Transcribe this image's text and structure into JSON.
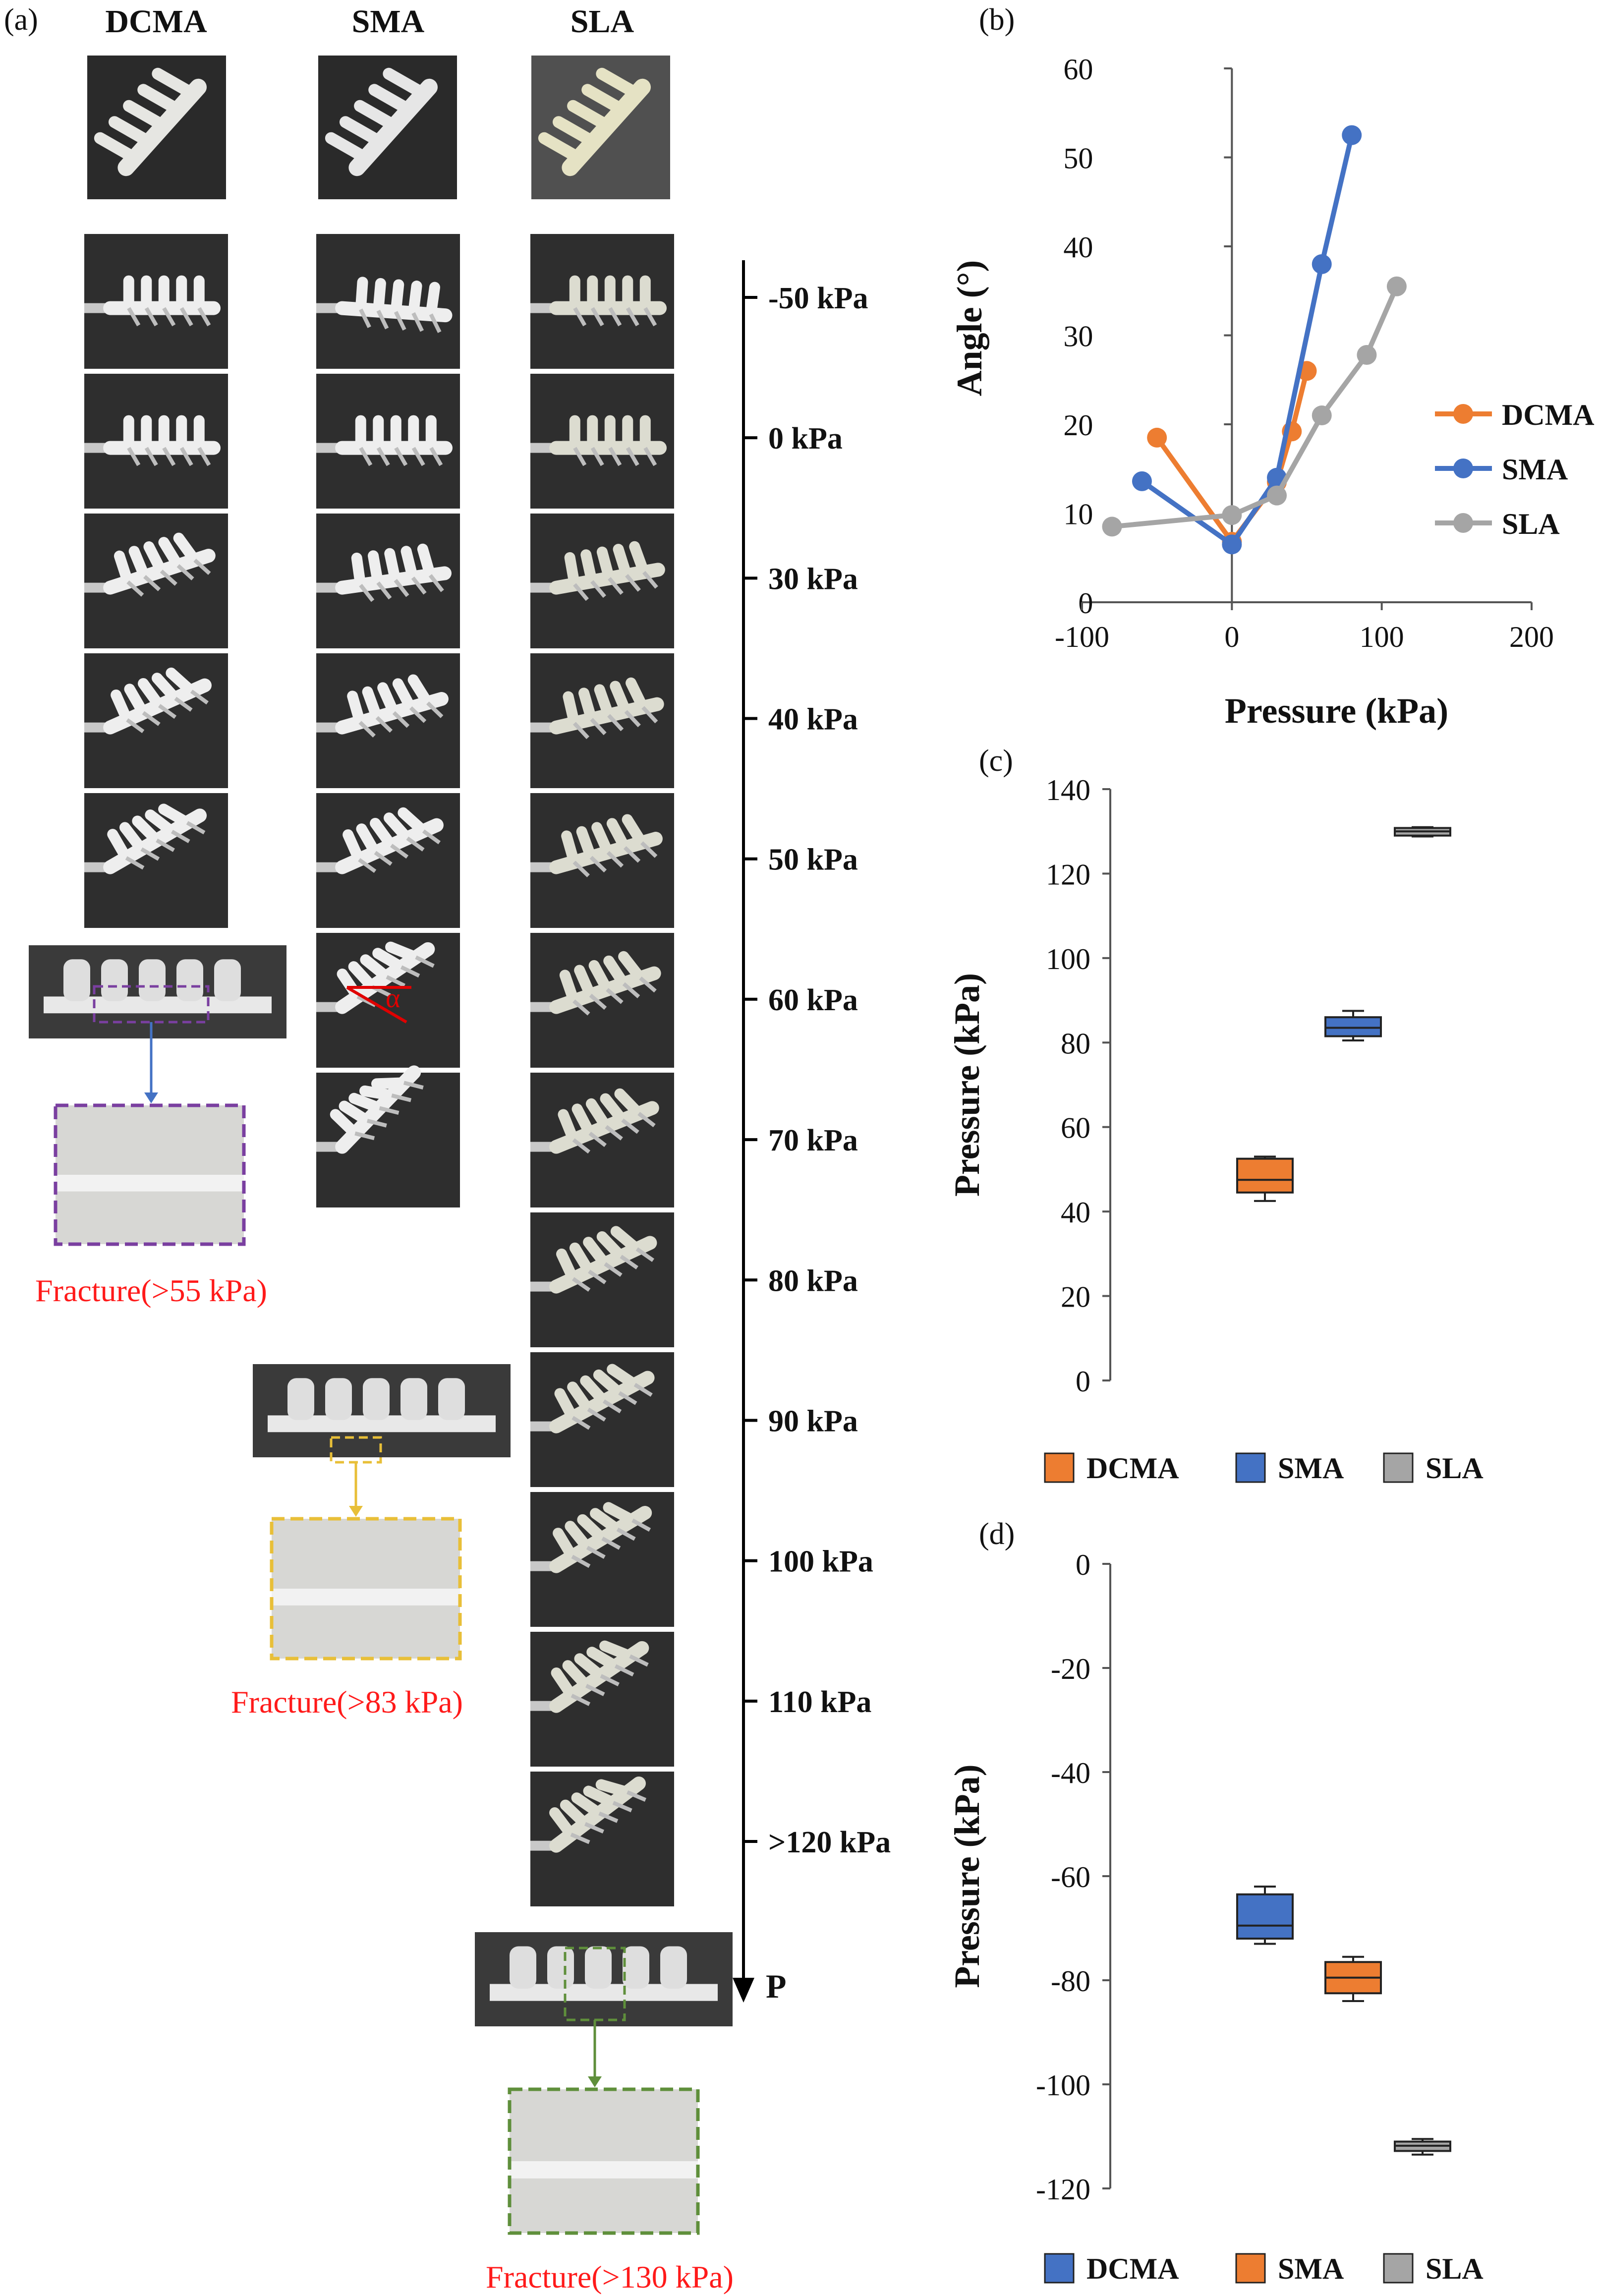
{
  "panel_a": {
    "panel_label": "(a)",
    "column_headers": [
      "DCMA",
      "SMA",
      "SLA"
    ],
    "pressure_axis": {
      "labels": [
        "-50 kPa",
        "0 kPa",
        "30 kPa",
        "40 kPa",
        "50 kPa",
        "60 kPa",
        "70 kPa",
        "80 kPa",
        "90 kPa",
        "100 kPa",
        "110 kPa",
        ">120 kPa"
      ],
      "arrow_label": "P"
    },
    "frame_counts": {
      "DCMA": 5,
      "SMA": 7,
      "SLA": 12
    },
    "angle_symbol": "α",
    "fractures": [
      {
        "actuator": "DCMA",
        "label": "Fracture(>55 kPa)"
      },
      {
        "actuator": "SMA",
        "label": "Fracture(>83 kPa)"
      },
      {
        "actuator": "SLA",
        "label": "Fracture(>130 kPa)"
      }
    ],
    "colors": {
      "fracture_text": "#ff1a1a",
      "dcma_box": "#7a3fa0",
      "sma_box": "#e8bf38",
      "sla_box": "#5f8f3b",
      "photo_bg": "#2e2e2e",
      "actuator": "#ececec"
    }
  },
  "chart_data": [
    {
      "panel_label": "(b)",
      "type": "line",
      "xlabel": "Pressure (kPa)",
      "ylabel": "Angle (°)",
      "xlim": [
        -100,
        200
      ],
      "ylim": [
        0,
        60
      ],
      "xticks": [
        -100,
        0,
        100,
        200
      ],
      "yticks": [
        0,
        10,
        20,
        30,
        40,
        50,
        60
      ],
      "legend_position": "right",
      "series": [
        {
          "name": "DCMA",
          "color": "#ed7d31",
          "x": [
            -50,
            0,
            30,
            40,
            50
          ],
          "y": [
            18.5,
            6.8,
            13.5,
            19.2,
            26.0
          ]
        },
        {
          "name": "SMA",
          "color": "#4472c4",
          "x": [
            -60,
            0,
            30,
            60,
            80
          ],
          "y": [
            13.6,
            6.5,
            14.0,
            38.0,
            52.5
          ]
        },
        {
          "name": "SLA",
          "color": "#a5a5a5",
          "x": [
            -80,
            0,
            30,
            60,
            90,
            110
          ],
          "y": [
            8.5,
            9.8,
            12.0,
            21.0,
            27.8,
            35.5
          ]
        }
      ]
    },
    {
      "panel_label": "(c)",
      "type": "box",
      "ylabel": "Pressure (kPa)",
      "ylim": [
        0,
        140
      ],
      "yticks": [
        0,
        20,
        40,
        60,
        80,
        100,
        120,
        140
      ],
      "legend_position": "bottom",
      "boxes": [
        {
          "name": "DCMA",
          "color": "#ed7d31",
          "min": 42.5,
          "q1": 44.5,
          "median": 47.5,
          "q3": 52.5,
          "max": 53.0
        },
        {
          "name": "SMA",
          "color": "#4472c4",
          "min": 80.5,
          "q1": 81.5,
          "median": 83.5,
          "q3": 86.0,
          "max": 87.5
        },
        {
          "name": "SLA",
          "color": "#a5a5a5",
          "min": 128.8,
          "q1": 129.0,
          "median": 130.0,
          "q3": 130.8,
          "max": 131.0
        }
      ]
    },
    {
      "panel_label": "(d)",
      "type": "box",
      "ylabel": "Pressure (kPa)",
      "ylim": [
        -120,
        0
      ],
      "yticks": [
        0,
        -20,
        -40,
        -60,
        -80,
        -100,
        -120
      ],
      "legend_position": "bottom",
      "boxes": [
        {
          "name": "DCMA",
          "color": "#4472c4",
          "min": -73.0,
          "q1": -72.0,
          "median": -69.5,
          "q3": -63.5,
          "max": -62.0
        },
        {
          "name": "SMA",
          "color": "#ed7d31",
          "min": -84.0,
          "q1": -82.5,
          "median": -79.5,
          "q3": -76.5,
          "max": -75.5
        },
        {
          "name": "SLA",
          "color": "#a5a5a5",
          "min": -113.5,
          "q1": -112.8,
          "median": -111.8,
          "q3": -111.0,
          "max": -110.5
        }
      ]
    }
  ]
}
